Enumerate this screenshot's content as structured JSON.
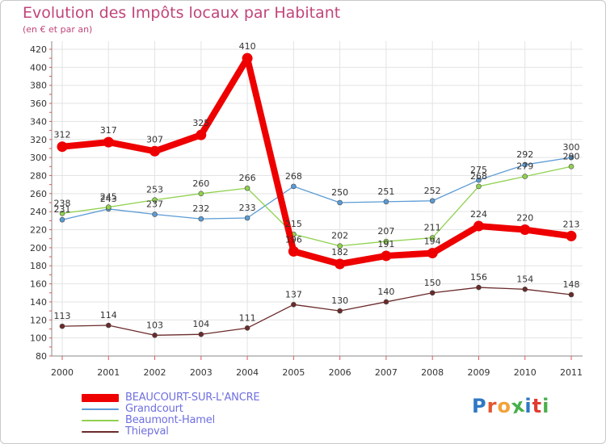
{
  "title": "Evolution des Impôts locaux par Habitant",
  "subtitle": "(en € et par an)",
  "logo_text": "Proxiti",
  "logo_colors": [
    "#2f78c4",
    "#e4572e",
    "#f2a23a",
    "#48b04a",
    "#2f78c4",
    "#e03c31",
    "#48b04a"
  ],
  "chart_data": {
    "type": "line",
    "x": [
      "2000",
      "2001",
      "2002",
      "2003",
      "2004",
      "2005",
      "2006",
      "2007",
      "2008",
      "2009",
      "2010",
      "2011"
    ],
    "ylim": [
      80,
      420
    ],
    "yticks": [
      "80",
      "100",
      "120",
      "140",
      "160",
      "180",
      "200",
      "220",
      "240",
      "260",
      "280",
      "300",
      "320",
      "340",
      "360",
      "380",
      "400",
      "420"
    ],
    "grid": true,
    "legend_position": "bottom-left",
    "series": [
      {
        "name": "BEAUCOURT-SUR-L'ANCRE",
        "color": "#ee0000",
        "values": [
          312,
          317,
          307,
          325,
          410,
          196,
          182,
          191,
          194,
          224,
          220,
          213
        ],
        "labels": [
          "312",
          "317",
          "307",
          "325",
          "410",
          "196",
          "182",
          "191",
          "194",
          "224",
          "220",
          "213"
        ]
      },
      {
        "name": "Grandcourt",
        "color": "#5b9bd5",
        "values": [
          231,
          243,
          237,
          232,
          233,
          268,
          250,
          251,
          252,
          275,
          292,
          300
        ],
        "labels": [
          "231",
          "243",
          "237",
          "232",
          "233",
          "268",
          "250",
          "251",
          "252",
          "275",
          "292",
          "300"
        ]
      },
      {
        "name": "Beaumont-Hamel",
        "color": "#8fd14f",
        "values": [
          238,
          245,
          253,
          260,
          266,
          215,
          202,
          207,
          211,
          268,
          279,
          290
        ],
        "labels": [
          "238",
          "245",
          "253",
          "260",
          "266",
          "215",
          "202",
          "207",
          "211",
          "268",
          "279",
          "290"
        ]
      },
      {
        "name": "Thiepval",
        "color": "#6b2a2a",
        "values": [
          113,
          114,
          103,
          104,
          111,
          137,
          130,
          140,
          150,
          156,
          154,
          148
        ],
        "labels": [
          "113",
          "114",
          "103",
          "104",
          "111",
          "137",
          "130",
          "140",
          "150",
          "156",
          "154",
          "148"
        ]
      }
    ]
  }
}
